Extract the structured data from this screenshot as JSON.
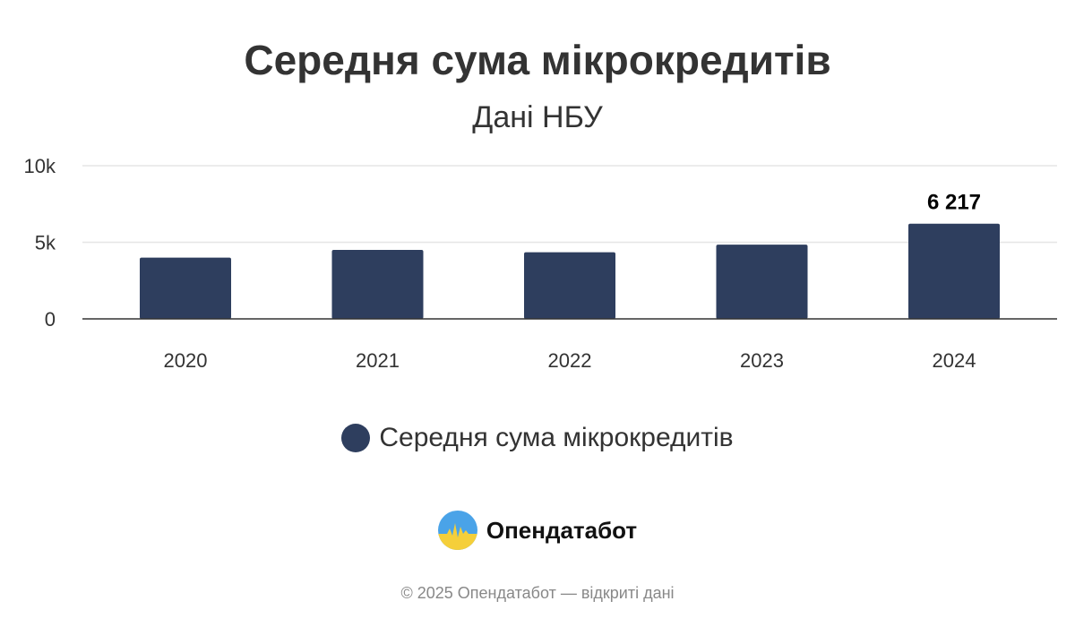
{
  "chart_data": {
    "type": "bar",
    "title": "Середня сума мікрокредитів",
    "subtitle": "Дані НБУ",
    "categories": [
      "2020",
      "2021",
      "2022",
      "2023",
      "2024"
    ],
    "series": [
      {
        "name": "Середня сума мікрокредитів",
        "values": [
          4000,
          4500,
          4350,
          4850,
          6217
        ],
        "color": "#2e3e5e"
      }
    ],
    "data_labels": [
      {
        "category": "2024",
        "text": "6 217"
      }
    ],
    "y_ticks": [
      {
        "value": 0,
        "label": "0"
      },
      {
        "value": 5000,
        "label": "5k"
      },
      {
        "value": 10000,
        "label": "10k"
      }
    ],
    "ylim": [
      0,
      10000
    ],
    "grid": true,
    "legend_position": "bottom-center"
  },
  "brand": {
    "name": "Опендатабот"
  },
  "footer": {
    "copyright": "© 2025 Опендатабот — відкриті дані"
  }
}
